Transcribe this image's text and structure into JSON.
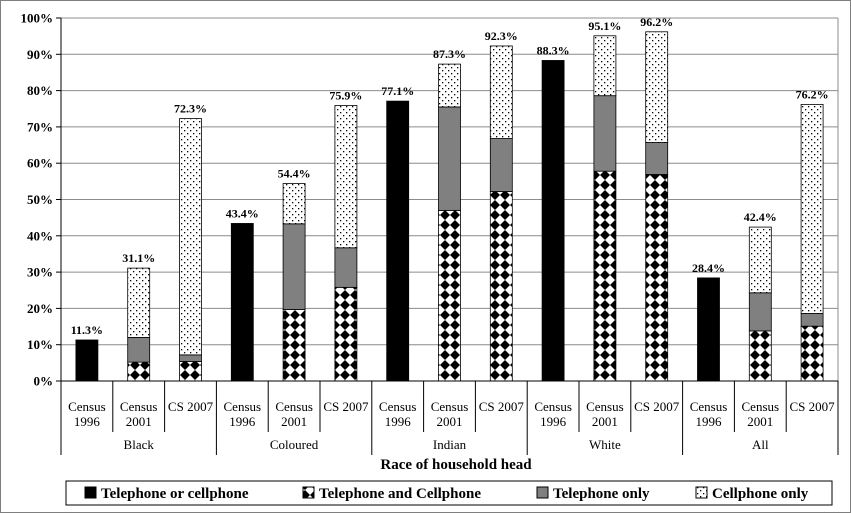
{
  "chart_data": {
    "type": "bar",
    "stacked": true,
    "xlabel": "Race of household head",
    "ylabel": "",
    "ylim": [
      0,
      100
    ],
    "yticks": [
      "0%",
      "10%",
      "20%",
      "30%",
      "40%",
      "50%",
      "60%",
      "70%",
      "80%",
      "90%",
      "100%"
    ],
    "grid": true,
    "legend_position": "bottom",
    "groups": [
      {
        "name": "Black",
        "bars": [
          {
            "label_line1": "Census",
            "label_line2": "1996",
            "total_label": "11.3%",
            "segments": [
              11.3
            ]
          },
          {
            "label_line1": "Census",
            "label_line2": "2001",
            "total_label": "31.1%",
            "segments": [
              0,
              5.2,
              6.8,
              19.1
            ]
          },
          {
            "label_line1": "CS 2007",
            "label_line2": "",
            "total_label": "72.3%",
            "segments": [
              0,
              5.4,
              1.8,
              65.1
            ]
          }
        ]
      },
      {
        "name": "Coloured",
        "bars": [
          {
            "label_line1": "Census",
            "label_line2": "1996",
            "total_label": "43.4%",
            "segments": [
              43.4
            ]
          },
          {
            "label_line1": "Census",
            "label_line2": "2001",
            "total_label": "54.4%",
            "segments": [
              0,
              19.7,
              23.6,
              11.1
            ]
          },
          {
            "label_line1": "CS 2007",
            "label_line2": "",
            "total_label": "75.9%",
            "segments": [
              0,
              25.8,
              10.9,
              39.2
            ]
          }
        ]
      },
      {
        "name": "Indian",
        "bars": [
          {
            "label_line1": "Census",
            "label_line2": "1996",
            "total_label": "77.1%",
            "segments": [
              77.1
            ]
          },
          {
            "label_line1": "Census",
            "label_line2": "2001",
            "total_label": "87.3%",
            "segments": [
              0,
              47.0,
              28.5,
              11.8
            ]
          },
          {
            "label_line1": "CS 2007",
            "label_line2": "",
            "total_label": "92.3%",
            "segments": [
              0,
              52.2,
              14.6,
              25.5
            ]
          }
        ]
      },
      {
        "name": "White",
        "bars": [
          {
            "label_line1": "Census",
            "label_line2": "1996",
            "total_label": "88.3%",
            "segments": [
              88.3
            ]
          },
          {
            "label_line1": "Census",
            "label_line2": "2001",
            "total_label": "95.1%",
            "segments": [
              0,
              57.8,
              20.8,
              16.5
            ]
          },
          {
            "label_line1": "CS 2007",
            "label_line2": "",
            "total_label": "96.2%",
            "segments": [
              0,
              56.9,
              8.8,
              30.5
            ]
          }
        ]
      },
      {
        "name": "All",
        "bars": [
          {
            "label_line1": "Census",
            "label_line2": "1996",
            "total_label": "28.4%",
            "segments": [
              28.4
            ]
          },
          {
            "label_line1": "Census",
            "label_line2": "2001",
            "total_label": "42.4%",
            "segments": [
              0,
              13.8,
              10.5,
              18.1
            ]
          },
          {
            "label_line1": "CS 2007",
            "label_line2": "",
            "total_label": "76.2%",
            "segments": [
              0,
              15.1,
              3.5,
              57.6
            ]
          }
        ]
      }
    ],
    "series": [
      {
        "name": "Telephone or cellphone",
        "pattern": "solid-black",
        "color": "#000000"
      },
      {
        "name": "Telephone and Cellphone",
        "pattern": "diamond-checker",
        "color": "#000000"
      },
      {
        "name": "Telephone only",
        "pattern": "solid-gray",
        "color": "#808080"
      },
      {
        "name": "Cellphone only",
        "pattern": "dots",
        "color": "#000000"
      }
    ]
  }
}
